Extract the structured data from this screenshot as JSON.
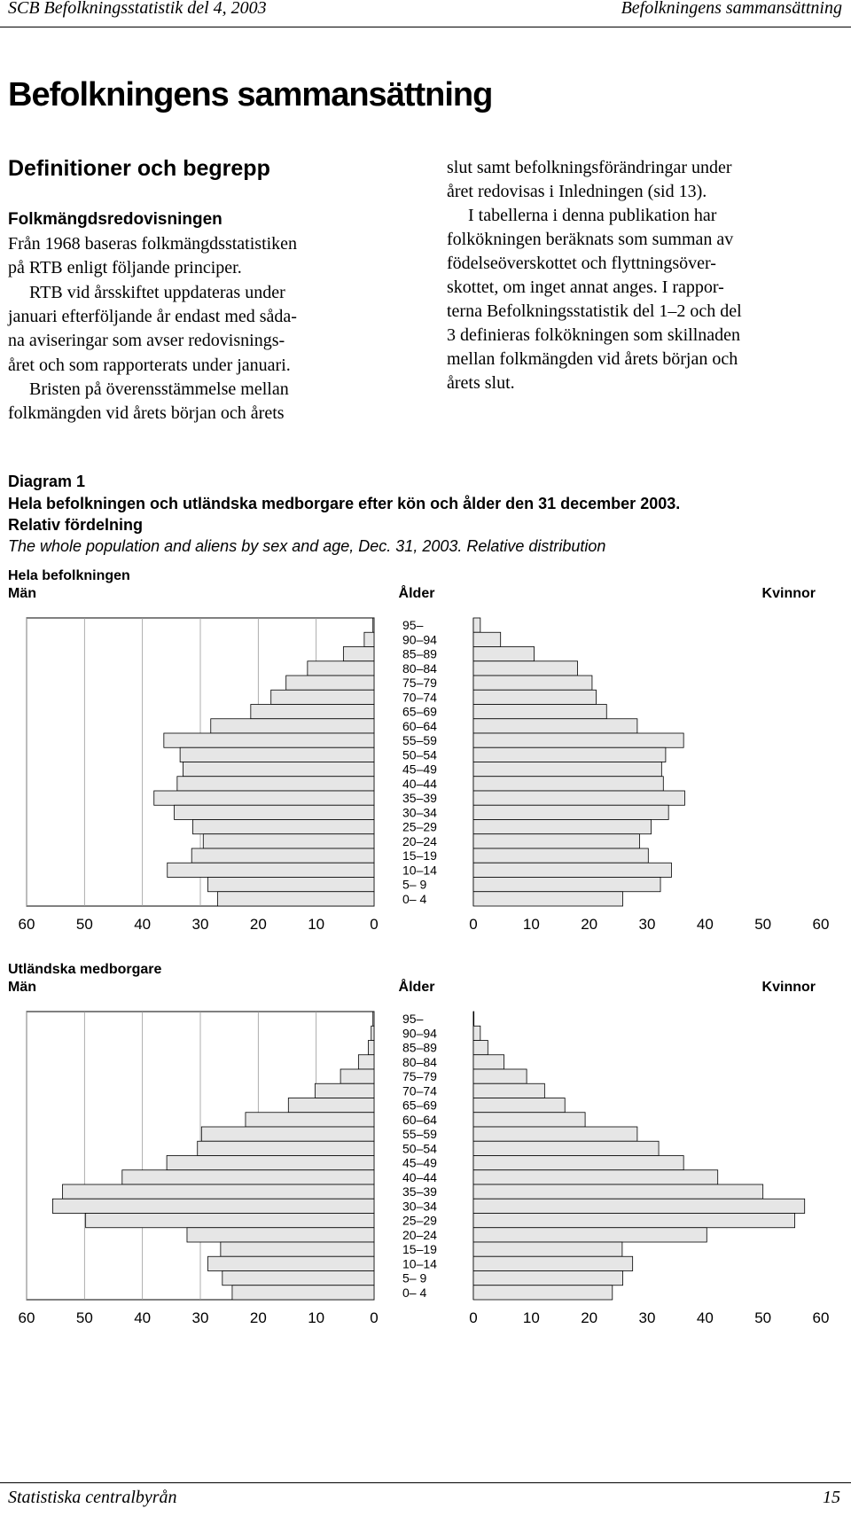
{
  "document": {
    "header": {
      "left": "SCB Befolkningsstatistik del 4, 2003",
      "right": "Befolkningens sammansättning"
    },
    "title": "Befolkningens sammansättning",
    "section": "Definitioner och begrepp",
    "subheading": "Folkmängdsredovisningen",
    "left_lines": [
      "Från 1968 baseras folkmängdsstatistiken",
      "på RTB enligt följande principer.",
      "RTB vid årsskiftet uppdateras under",
      "januari efterföljande år endast med såda-",
      "na aviseringar som avser redovisnings-",
      "året och som rapporterats under januari.",
      "Bristen på överensstämmelse mellan",
      "folkmängden vid årets början och årets"
    ],
    "right_lines": [
      "slut samt befolkningsförändringar under",
      "året redovisas i Inledningen (sid 13).",
      "I tabellerna i denna publikation har",
      "folkökningen beräknats som summan av",
      "födelseöverskottet och flyttningsöver-",
      "skottet, om inget annat anges. I rappor-",
      "terna Befolkningsstatistik del 1–2 och del",
      "3 definieras folkökningen som skillnaden",
      "mellan folkmängden vid årets början och",
      "årets slut."
    ],
    "diagram": {
      "label": "Diagram 1",
      "title_lines": [
        "Hela befolkningen och utländska medborgare efter kön och ålder den 31 december 2003.",
        "Relativ fördelning"
      ],
      "english": "The whole population and aliens by sex and age, Dec. 31, 2003. Relative distribution"
    },
    "footer": {
      "left": "Statistiska centralbyrån",
      "page": "15"
    }
  },
  "chart_data": [
    {
      "type": "pyramid",
      "title": "Hela befolkningen",
      "category_label": "Ålder",
      "categories": [
        "95–",
        "90–94",
        "85–89",
        "80–84",
        "75–79",
        "70–74",
        "65–69",
        "60–64",
        "55–59",
        "50–54",
        "45–49",
        "40–44",
        "35–39",
        "30–34",
        "25–29",
        "20–24",
        "15–19",
        "10–14",
        "5– 9",
        "0– 4"
      ],
      "series": [
        {
          "name": "Män",
          "color": "#e6e6e6",
          "values": [
            0.2,
            1.7,
            5.3,
            11.5,
            15.2,
            17.8,
            21.3,
            28.2,
            36.3,
            33.5,
            33,
            34,
            38,
            34.5,
            31.3,
            29.5,
            31.5,
            35.7,
            28.7,
            27
          ]
        },
        {
          "name": "Kvinnor",
          "color": "#e6e6e6",
          "values": [
            1.2,
            4.7,
            10.5,
            18,
            20.5,
            21.2,
            23,
            28.3,
            36.3,
            33.2,
            32.5,
            32.8,
            36.5,
            33.7,
            30.7,
            28.7,
            30.2,
            34.2,
            32.3,
            25.8
          ]
        }
      ],
      "xlim": [
        0,
        60
      ],
      "xticks": [
        0,
        10,
        20,
        30,
        40,
        50,
        60
      ],
      "grid": true
    },
    {
      "type": "pyramid",
      "title": "Utländska medborgare",
      "category_label": "Ålder",
      "categories": [
        "95–",
        "90–94",
        "85–89",
        "80–84",
        "75–79",
        "70–74",
        "65–69",
        "60–64",
        "55–59",
        "50–54",
        "45–49",
        "40–44",
        "35–39",
        "30–34",
        "25–29",
        "20–24",
        "15–19",
        "10–14",
        "5– 9",
        "0– 4"
      ],
      "series": [
        {
          "name": "Män",
          "color": "#e6e6e6",
          "values": [
            0.2,
            0.5,
            1,
            2.7,
            5.8,
            10.2,
            14.8,
            22.2,
            29.8,
            30.5,
            35.8,
            43.5,
            53.8,
            55.5,
            49.8,
            32.3,
            26.5,
            28.7,
            26.2,
            24.5
          ]
        },
        {
          "name": "Kvinnor",
          "color": "#e6e6e6",
          "values": [
            0.1,
            1.2,
            2.5,
            5.3,
            9.2,
            12.3,
            15.8,
            19.3,
            28.3,
            32,
            36.3,
            42.2,
            50,
            57.2,
            55.5,
            40.3,
            25.7,
            27.5,
            25.8,
            24
          ]
        }
      ],
      "xlim": [
        0,
        60
      ],
      "xticks": [
        0,
        10,
        20,
        30,
        40,
        50,
        60
      ],
      "grid": true
    }
  ]
}
